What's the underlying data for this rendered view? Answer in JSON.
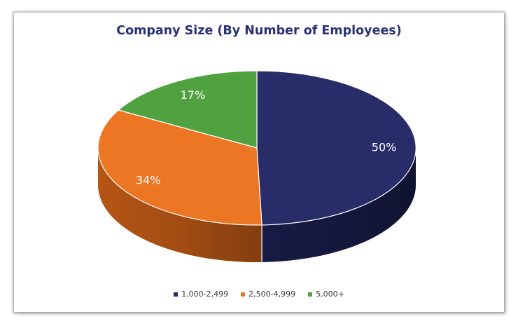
{
  "chart_data": {
    "type": "pie",
    "title": "Company Size (By Number of Employees)",
    "categories": [
      "1,000-2,499",
      "2,500-4,999",
      "5,000+"
    ],
    "values": [
      50,
      34,
      17
    ],
    "labels": [
      "50%",
      "34%",
      "17%"
    ],
    "colors": [
      "#282c69",
      "#ec7624",
      "#4fa23f"
    ],
    "side_colors": [
      "#171a44",
      "#b45515",
      "#2f6e28"
    ],
    "legend_position": "bottom",
    "style": "3d"
  }
}
